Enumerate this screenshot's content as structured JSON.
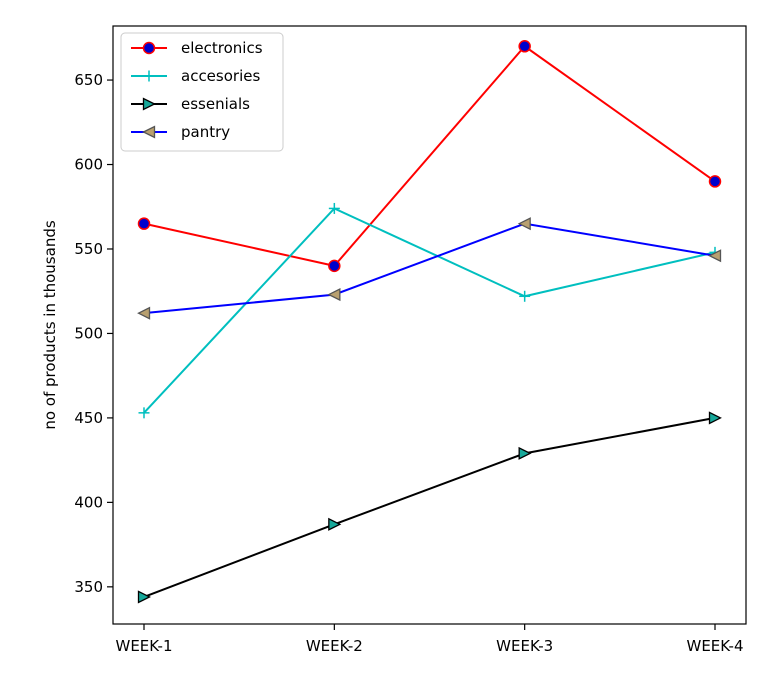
{
  "chart_data": {
    "type": "line",
    "title": "",
    "xlabel": "",
    "ylabel": "no of products in thousands",
    "categories": [
      "WEEK-1",
      "WEEK-2",
      "WEEK-3",
      "WEEK-4"
    ],
    "ylim": [
      328,
      682
    ],
    "yticks": [
      350,
      400,
      450,
      500,
      550,
      600,
      650
    ],
    "grid": false,
    "legend_position": "top-left",
    "series": [
      {
        "name": "electronics",
        "values": [
          565,
          540,
          670,
          590
        ],
        "color": "#ff0000",
        "marker": "circle",
        "marker_face": "#0000cc",
        "marker_edge": "#ff0000"
      },
      {
        "name": "accesories",
        "values": [
          453,
          574,
          522,
          548
        ],
        "color": "#00bfbf",
        "marker": "plus",
        "marker_face": "#00bfbf",
        "marker_edge": "#00bfbf"
      },
      {
        "name": "essenials",
        "values": [
          344,
          387,
          429,
          450
        ],
        "color": "#000000",
        "marker": "triangle-right",
        "marker_face": "#17a89a",
        "marker_edge": "#000000"
      },
      {
        "name": "pantry",
        "values": [
          512,
          523,
          565,
          546
        ],
        "color": "#0000ff",
        "marker": "triangle-left",
        "marker_face": "#b8a070",
        "marker_edge": "#555555"
      }
    ]
  }
}
